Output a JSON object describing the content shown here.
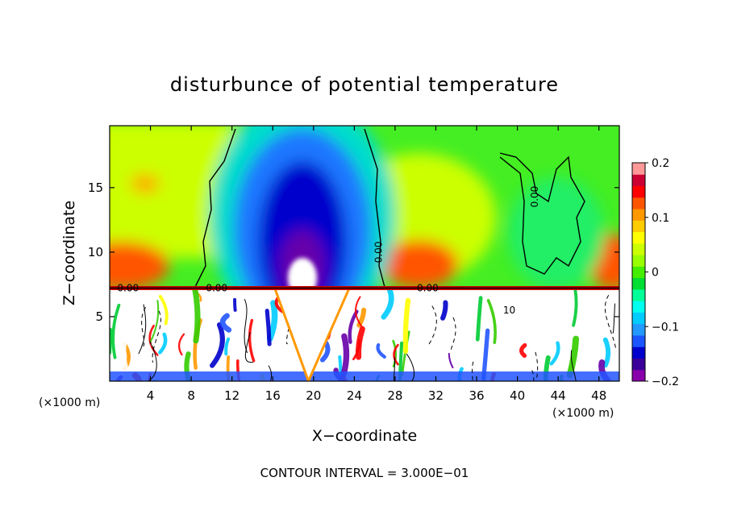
{
  "chart_data": {
    "type": "heatmap",
    "title": "disturbunce of potential temperature",
    "xlabel": "X−coordinate",
    "ylabel": "Z−coordinate",
    "x_unit_left": "(×1000 m)",
    "x_unit_right": "(×1000 m)",
    "footer": "CONTOUR INTERVAL = 3.000E−01",
    "xlim": [
      0,
      50
    ],
    "ylim": [
      0,
      19.8
    ],
    "xticks": [
      4,
      8,
      12,
      16,
      20,
      24,
      28,
      32,
      36,
      40,
      44,
      48
    ],
    "xtick_labels": [
      "4",
      "8",
      "12",
      "16",
      "20",
      "24",
      "28",
      "32",
      "36",
      "40",
      "44",
      "48"
    ],
    "yticks": [
      5,
      10,
      15
    ],
    "ytick_labels": [
      "5",
      "10",
      "15"
    ],
    "colorbar": {
      "min": -0.2,
      "max": 0.2,
      "ticks": [
        0.2,
        0.1,
        0,
        -0.1,
        -0.2
      ],
      "tick_labels": [
        "0.2",
        "0.1",
        "0",
        "−0.1",
        "−0.2"
      ],
      "colors": [
        "#8800aa",
        "#3a0099",
        "#0000cc",
        "#1a55ff",
        "#2299ff",
        "#00ccff",
        "#00ffee",
        "#00ff99",
        "#00dd33",
        "#44ee00",
        "#99ff00",
        "#ccff00",
        "#ffff00",
        "#ffcc00",
        "#ff9900",
        "#ff5500",
        "#ff0000",
        "#cc0033",
        "#ff9999"
      ]
    },
    "interface_z": 7.2,
    "upper_features": [
      {
        "kind": "cold_plume",
        "x": 19.0,
        "z_top": 19.8,
        "min_value": -0.2,
        "width": 6.5
      },
      {
        "kind": "warm_band",
        "x": 0,
        "z": 8.2,
        "value": 0.15
      },
      {
        "kind": "warm_band",
        "x": 30.5,
        "z": 8.2,
        "value": 0.15
      },
      {
        "kind": "warm_band",
        "x": 49.5,
        "z": 8.2,
        "value": 0.15
      },
      {
        "kind": "warm_spot",
        "x": 3.0,
        "z": 15.5,
        "value": 0.1
      }
    ],
    "contour_labels": [
      {
        "text": "0.00",
        "x": 1.8,
        "z": 7.2
      },
      {
        "text": "0.00",
        "x": 10.5,
        "z": 7.2
      },
      {
        "text": "0.00",
        "x": 26.4,
        "z": 10.0
      },
      {
        "text": "0.00",
        "x": 31.2,
        "z": 7.2
      },
      {
        "text": "0.00",
        "x": 41.7,
        "z": 14.3
      },
      {
        "text": "10",
        "x": 39.2,
        "z": 5.5
      }
    ]
  }
}
